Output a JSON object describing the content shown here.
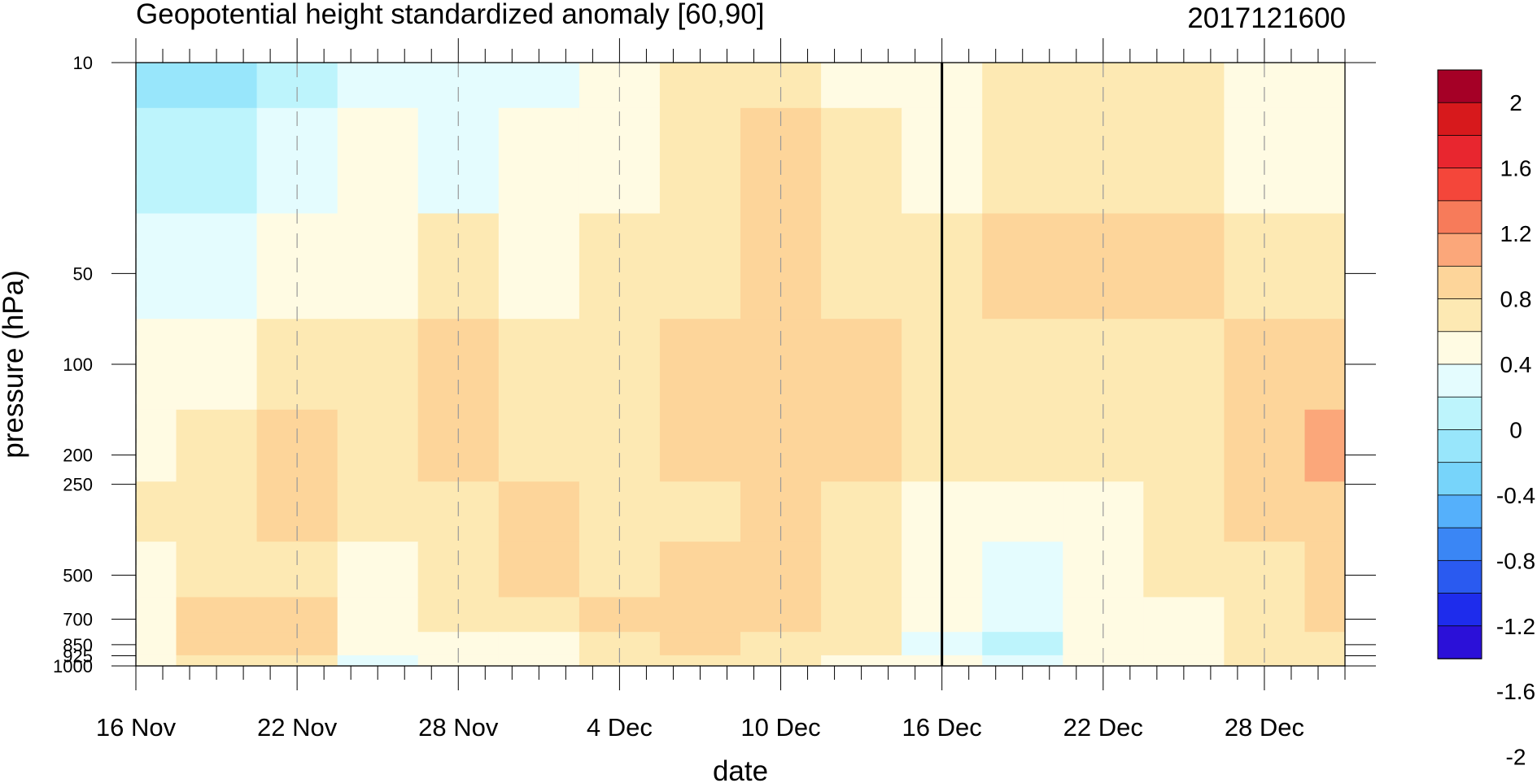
{
  "chart_data": {
    "type": "heatmap",
    "title": "Geopotential height standardized anomaly [60,90]",
    "datestamp": "2017121600",
    "xlabel": "date",
    "ylabel": "pressure (hPa)",
    "x_ticks": [
      "16 Nov",
      "22 Nov",
      "28 Nov",
      "4 Dec",
      "10 Dec",
      "16 Dec",
      "22 Dec",
      "28 Dec"
    ],
    "x_days": [
      0,
      6,
      12,
      18,
      24,
      30,
      36,
      42
    ],
    "xlim_days": [
      0,
      45
    ],
    "y_scale": "log",
    "y_ticks": [
      "10",
      "50",
      "100",
      "200",
      "250",
      "500",
      "700",
      "850",
      "925",
      "1000"
    ],
    "y_values": [
      10,
      50,
      100,
      200,
      250,
      500,
      700,
      850,
      925,
      1000
    ],
    "ylim": [
      1000,
      10
    ],
    "current_date_marker": "16 Dec",
    "current_date_marker_day": 30,
    "colorbar": {
      "labels": [
        "2",
        "1.6",
        "1.2",
        "0.8",
        "0.4",
        "0",
        "-0.4",
        "-0.8",
        "-1.2",
        "-1.6",
        "-2"
      ],
      "colors": [
        "#a50026",
        "#d7191c",
        "#e8262f",
        "#f4463a",
        "#f77b5a",
        "#fba77a",
        "#fdd59a",
        "#fde9b3",
        "#fffbe3",
        "#e4fcfe",
        "#bdf4fc",
        "#98e6fb",
        "#77d4fa",
        "#55b0fb",
        "#3a86f5",
        "#2a5af0",
        "#1e2cec",
        "#2b10d8"
      ]
    },
    "colors": {
      "neg_light": "#e4fcfe",
      "neg_mid": "#bdf4fc",
      "neg_dark": "#98e6fb",
      "pos_00_04": "#fffbe3",
      "pos_04_08": "#fde9b3",
      "pos_08_12": "#fdd59a",
      "pos_12_16": "#fba77a",
      "pos_16_20": "#f77b5a"
    },
    "anomaly_grid": {
      "x_days": [
        0,
        3,
        6,
        9,
        12,
        15,
        18,
        21,
        24,
        27,
        30,
        33,
        36,
        39,
        42,
        45
      ],
      "pressures": [
        10,
        20,
        50,
        100,
        200,
        300,
        500,
        700,
        850,
        1000
      ],
      "values": [
        [
          -0.5,
          -0.5,
          -0.3,
          -0.2,
          -0.2,
          -0.1,
          0.1,
          0.5,
          0.7,
          0.3,
          0.2,
          0.4,
          0.6,
          0.5,
          0.2,
          0.1
        ],
        [
          -0.4,
          -0.3,
          -0.2,
          0.0,
          -0.1,
          0.0,
          0.3,
          0.6,
          0.8,
          0.4,
          0.2,
          0.5,
          0.7,
          0.6,
          0.3,
          0.2
        ],
        [
          -0.2,
          -0.1,
          0.1,
          0.3,
          0.4,
          0.3,
          0.5,
          0.7,
          0.9,
          0.7,
          0.6,
          0.8,
          0.9,
          0.8,
          0.6,
          0.5
        ],
        [
          0.1,
          0.3,
          0.5,
          0.6,
          0.8,
          0.6,
          0.7,
          0.9,
          0.9,
          0.8,
          0.7,
          0.5,
          0.5,
          0.7,
          0.9,
          1.0
        ],
        [
          0.3,
          0.7,
          0.9,
          0.5,
          0.9,
          0.7,
          0.6,
          0.8,
          0.9,
          0.9,
          0.6,
          0.5,
          0.4,
          0.6,
          1.0,
          1.3
        ],
        [
          0.4,
          0.6,
          0.8,
          0.4,
          0.7,
          0.9,
          0.5,
          0.7,
          0.9,
          0.6,
          0.2,
          0.1,
          0.2,
          0.5,
          0.8,
          1.1
        ],
        [
          0.3,
          0.6,
          0.7,
          0.2,
          0.5,
          0.8,
          0.7,
          0.8,
          0.9,
          0.5,
          0.1,
          -0.1,
          0.1,
          0.4,
          0.7,
          0.9
        ],
        [
          0.2,
          0.8,
          0.9,
          0.1,
          0.4,
          0.4,
          0.8,
          0.9,
          1.0,
          0.6,
          0.0,
          -0.2,
          0.2,
          0.3,
          0.6,
          0.8
        ],
        [
          0.1,
          0.9,
          1.0,
          0.0,
          0.1,
          0.3,
          0.7,
          0.9,
          0.7,
          0.4,
          -0.1,
          -0.3,
          0.1,
          0.3,
          0.6,
          0.7
        ],
        [
          0.0,
          0.6,
          0.7,
          -0.1,
          0.0,
          0.1,
          0.4,
          0.6,
          0.5,
          0.2,
          0.0,
          -0.2,
          0.0,
          0.2,
          0.5,
          0.6
        ]
      ]
    }
  }
}
